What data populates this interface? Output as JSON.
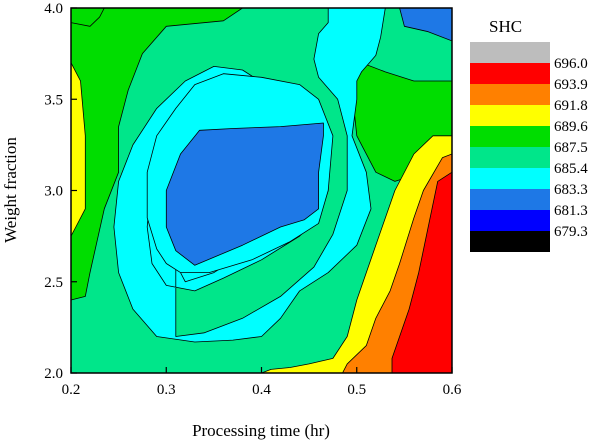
{
  "chart_data": {
    "type": "contour",
    "xlabel": "Processing time (hr)",
    "ylabel": "Weight fraction",
    "xlim": [
      0.2,
      0.6
    ],
    "ylim": [
      2.0,
      4.0
    ],
    "xticks": [
      "0.2",
      "0.3",
      "0.4",
      "0.5",
      "0.6"
    ],
    "yticks": [
      "2.0",
      "2.5",
      "3.0",
      "3.5",
      "4.0"
    ],
    "grid": false,
    "legend": {
      "title": "SHC",
      "placement": "right",
      "levels": [
        {
          "label": "696.0",
          "color": "#bdbdbd"
        },
        {
          "label": "693.9",
          "color": "#ff0000"
        },
        {
          "label": "691.8",
          "color": "#ff8000"
        },
        {
          "label": "689.6",
          "color": "#ffff00"
        },
        {
          "label": "687.5",
          "color": "#00dd00"
        },
        {
          "label": "685.4",
          "color": "#00e68a"
        },
        {
          "label": "683.3",
          "color": "#00ffff"
        },
        {
          "label": "681.3",
          "color": "#1e78e6"
        },
        {
          "label": "679.3",
          "color": "#0000ff"
        },
        {
          "label": "",
          "color": "#000000"
        }
      ]
    },
    "regions": [
      {
        "level": "685.4",
        "color": "#00e68a",
        "points": [
          [
            0.2,
            2.0
          ],
          [
            0.6,
            2.0
          ],
          [
            0.6,
            4.0
          ],
          [
            0.2,
            4.0
          ]
        ]
      },
      {
        "level": "687.5",
        "color": "#00dd00",
        "points": [
          [
            0.2,
            4.0
          ],
          [
            0.2,
            2.4
          ],
          [
            0.215,
            2.42
          ],
          [
            0.22,
            2.55
          ],
          [
            0.235,
            2.9
          ],
          [
            0.25,
            3.1
          ],
          [
            0.25,
            3.35
          ],
          [
            0.26,
            3.55
          ],
          [
            0.275,
            3.75
          ],
          [
            0.3,
            3.9
          ],
          [
            0.36,
            3.93
          ],
          [
            0.38,
            4.0
          ]
        ]
      },
      {
        "level": "687.5",
        "color": "#00dd00",
        "points": [
          [
            0.2,
            4.0
          ],
          [
            0.2,
            3.92
          ],
          [
            0.22,
            3.9
          ],
          [
            0.23,
            3.95
          ],
          [
            0.235,
            4.0
          ]
        ]
      },
      {
        "level": "687.5",
        "color": "#00dd00",
        "points": [
          [
            0.6,
            3.15
          ],
          [
            0.57,
            3.1
          ],
          [
            0.54,
            3.05
          ],
          [
            0.52,
            3.1
          ],
          [
            0.5,
            3.3
          ],
          [
            0.495,
            3.55
          ],
          [
            0.505,
            3.7
          ],
          [
            0.53,
            3.65
          ],
          [
            0.56,
            3.6
          ],
          [
            0.6,
            3.6
          ]
        ]
      },
      {
        "level": "689.6",
        "color": "#ffff00",
        "points": [
          [
            0.2,
            3.7
          ],
          [
            0.21,
            3.6
          ],
          [
            0.215,
            3.3
          ],
          [
            0.215,
            2.9
          ],
          [
            0.205,
            2.8
          ],
          [
            0.2,
            2.75
          ]
        ]
      },
      {
        "level": "689.6",
        "color": "#ffff00",
        "points": [
          [
            0.6,
            3.3
          ],
          [
            0.58,
            3.3
          ],
          [
            0.56,
            3.2
          ],
          [
            0.54,
            3.0
          ],
          [
            0.52,
            2.7
          ],
          [
            0.5,
            2.4
          ],
          [
            0.49,
            2.2
          ],
          [
            0.475,
            2.08
          ],
          [
            0.45,
            2.05
          ],
          [
            0.43,
            2.03
          ],
          [
            0.41,
            2.02
          ],
          [
            0.4,
            2.0
          ],
          [
            0.6,
            2.0
          ]
        ]
      },
      {
        "level": "691.8",
        "color": "#ff8000",
        "points": [
          [
            0.6,
            3.2
          ],
          [
            0.59,
            3.18
          ],
          [
            0.57,
            3.0
          ],
          [
            0.56,
            2.85
          ],
          [
            0.545,
            2.6
          ],
          [
            0.535,
            2.45
          ],
          [
            0.52,
            2.3
          ],
          [
            0.51,
            2.15
          ],
          [
            0.49,
            2.05
          ],
          [
            0.485,
            2.0
          ],
          [
            0.6,
            2.0
          ]
        ]
      },
      {
        "level": "693.9",
        "color": "#ff0000",
        "points": [
          [
            0.6,
            3.1
          ],
          [
            0.585,
            3.05
          ],
          [
            0.575,
            2.8
          ],
          [
            0.565,
            2.55
          ],
          [
            0.555,
            2.35
          ],
          [
            0.545,
            2.2
          ],
          [
            0.537,
            2.08
          ],
          [
            0.537,
            2.0
          ],
          [
            0.6,
            2.0
          ]
        ]
      },
      {
        "level": "683.3",
        "color": "#00ffff",
        "points": [
          [
            0.31,
            2.2
          ],
          [
            0.34,
            2.22
          ],
          [
            0.38,
            2.3
          ],
          [
            0.42,
            2.42
          ],
          [
            0.455,
            2.58
          ],
          [
            0.475,
            2.76
          ],
          [
            0.49,
            3.0
          ],
          [
            0.49,
            3.3
          ],
          [
            0.48,
            3.5
          ],
          [
            0.46,
            3.62
          ],
          [
            0.455,
            3.72
          ],
          [
            0.46,
            3.86
          ],
          [
            0.47,
            3.92
          ],
          [
            0.47,
            4.0
          ],
          [
            0.53,
            4.0
          ],
          [
            0.525,
            3.84
          ],
          [
            0.52,
            3.74
          ],
          [
            0.505,
            3.65
          ],
          [
            0.5,
            3.6
          ],
          [
            0.5,
            3.5
          ],
          [
            0.495,
            3.3
          ],
          [
            0.51,
            3.1
          ],
          [
            0.515,
            2.9
          ],
          [
            0.5,
            2.7
          ],
          [
            0.47,
            2.55
          ],
          [
            0.44,
            2.45
          ],
          [
            0.42,
            2.3
          ],
          [
            0.4,
            2.2
          ],
          [
            0.37,
            2.18
          ],
          [
            0.33,
            2.17
          ],
          [
            0.29,
            2.2
          ],
          [
            0.265,
            2.35
          ],
          [
            0.25,
            2.55
          ],
          [
            0.245,
            2.8
          ],
          [
            0.25,
            3.05
          ],
          [
            0.265,
            3.25
          ],
          [
            0.29,
            3.45
          ],
          [
            0.32,
            3.6
          ],
          [
            0.35,
            3.68
          ],
          [
            0.38,
            3.66
          ],
          [
            0.41,
            3.56
          ],
          [
            0.44,
            3.5
          ],
          [
            0.455,
            3.42
          ],
          [
            0.47,
            3.32
          ],
          [
            0.47,
            3.0
          ],
          [
            0.46,
            2.85
          ],
          [
            0.44,
            2.75
          ],
          [
            0.4,
            2.62
          ],
          [
            0.36,
            2.52
          ],
          [
            0.33,
            2.45
          ],
          [
            0.3,
            2.48
          ],
          [
            0.285,
            2.6
          ],
          [
            0.28,
            2.8
          ],
          [
            0.285,
            3.1
          ],
          [
            0.3,
            3.35
          ],
          [
            0.33,
            3.55
          ],
          [
            0.36,
            3.6
          ],
          [
            0.39,
            3.58
          ],
          [
            0.42,
            3.5
          ],
          [
            0.445,
            3.42
          ],
          [
            0.46,
            3.32
          ],
          [
            0.46,
            3.0
          ],
          [
            0.45,
            2.85
          ],
          [
            0.42,
            2.75
          ],
          [
            0.38,
            2.65
          ],
          [
            0.35,
            2.55
          ],
          [
            0.32,
            2.5
          ],
          [
            0.31,
            2.6
          ],
          [
            0.305,
            2.8
          ],
          [
            0.31,
            3.0
          ],
          [
            0.31,
            2.2
          ]
        ]
      },
      {
        "level": "683.3",
        "color": "#00ffff",
        "points": [
          [
            0.315,
            2.55
          ],
          [
            0.345,
            2.55
          ],
          [
            0.39,
            2.62
          ],
          [
            0.43,
            2.72
          ],
          [
            0.46,
            2.82
          ],
          [
            0.47,
            3.0
          ],
          [
            0.475,
            3.3
          ],
          [
            0.46,
            3.5
          ],
          [
            0.44,
            3.58
          ],
          [
            0.4,
            3.62
          ],
          [
            0.36,
            3.64
          ],
          [
            0.33,
            3.58
          ],
          [
            0.31,
            3.45
          ],
          [
            0.29,
            3.3
          ],
          [
            0.28,
            3.1
          ],
          [
            0.28,
            2.85
          ],
          [
            0.29,
            2.68
          ],
          [
            0.3,
            2.6
          ]
        ]
      },
      {
        "level": "681.3",
        "color": "#1e78e6",
        "points": [
          [
            0.33,
            2.59
          ],
          [
            0.38,
            2.7
          ],
          [
            0.42,
            2.8
          ],
          [
            0.445,
            2.84
          ],
          [
            0.46,
            2.9
          ],
          [
            0.46,
            3.1
          ],
          [
            0.465,
            3.3
          ],
          [
            0.465,
            3.37
          ],
          [
            0.42,
            3.35
          ],
          [
            0.37,
            3.34
          ],
          [
            0.335,
            3.33
          ],
          [
            0.315,
            3.2
          ],
          [
            0.3,
            3.0
          ],
          [
            0.3,
            2.8
          ],
          [
            0.31,
            2.67
          ]
        ]
      },
      {
        "level": "681.3",
        "color": "#1e78e6",
        "points": [
          [
            0.545,
            4.0
          ],
          [
            0.55,
            3.9
          ],
          [
            0.575,
            3.87
          ],
          [
            0.6,
            3.82
          ],
          [
            0.6,
            4.0
          ]
        ]
      }
    ]
  }
}
